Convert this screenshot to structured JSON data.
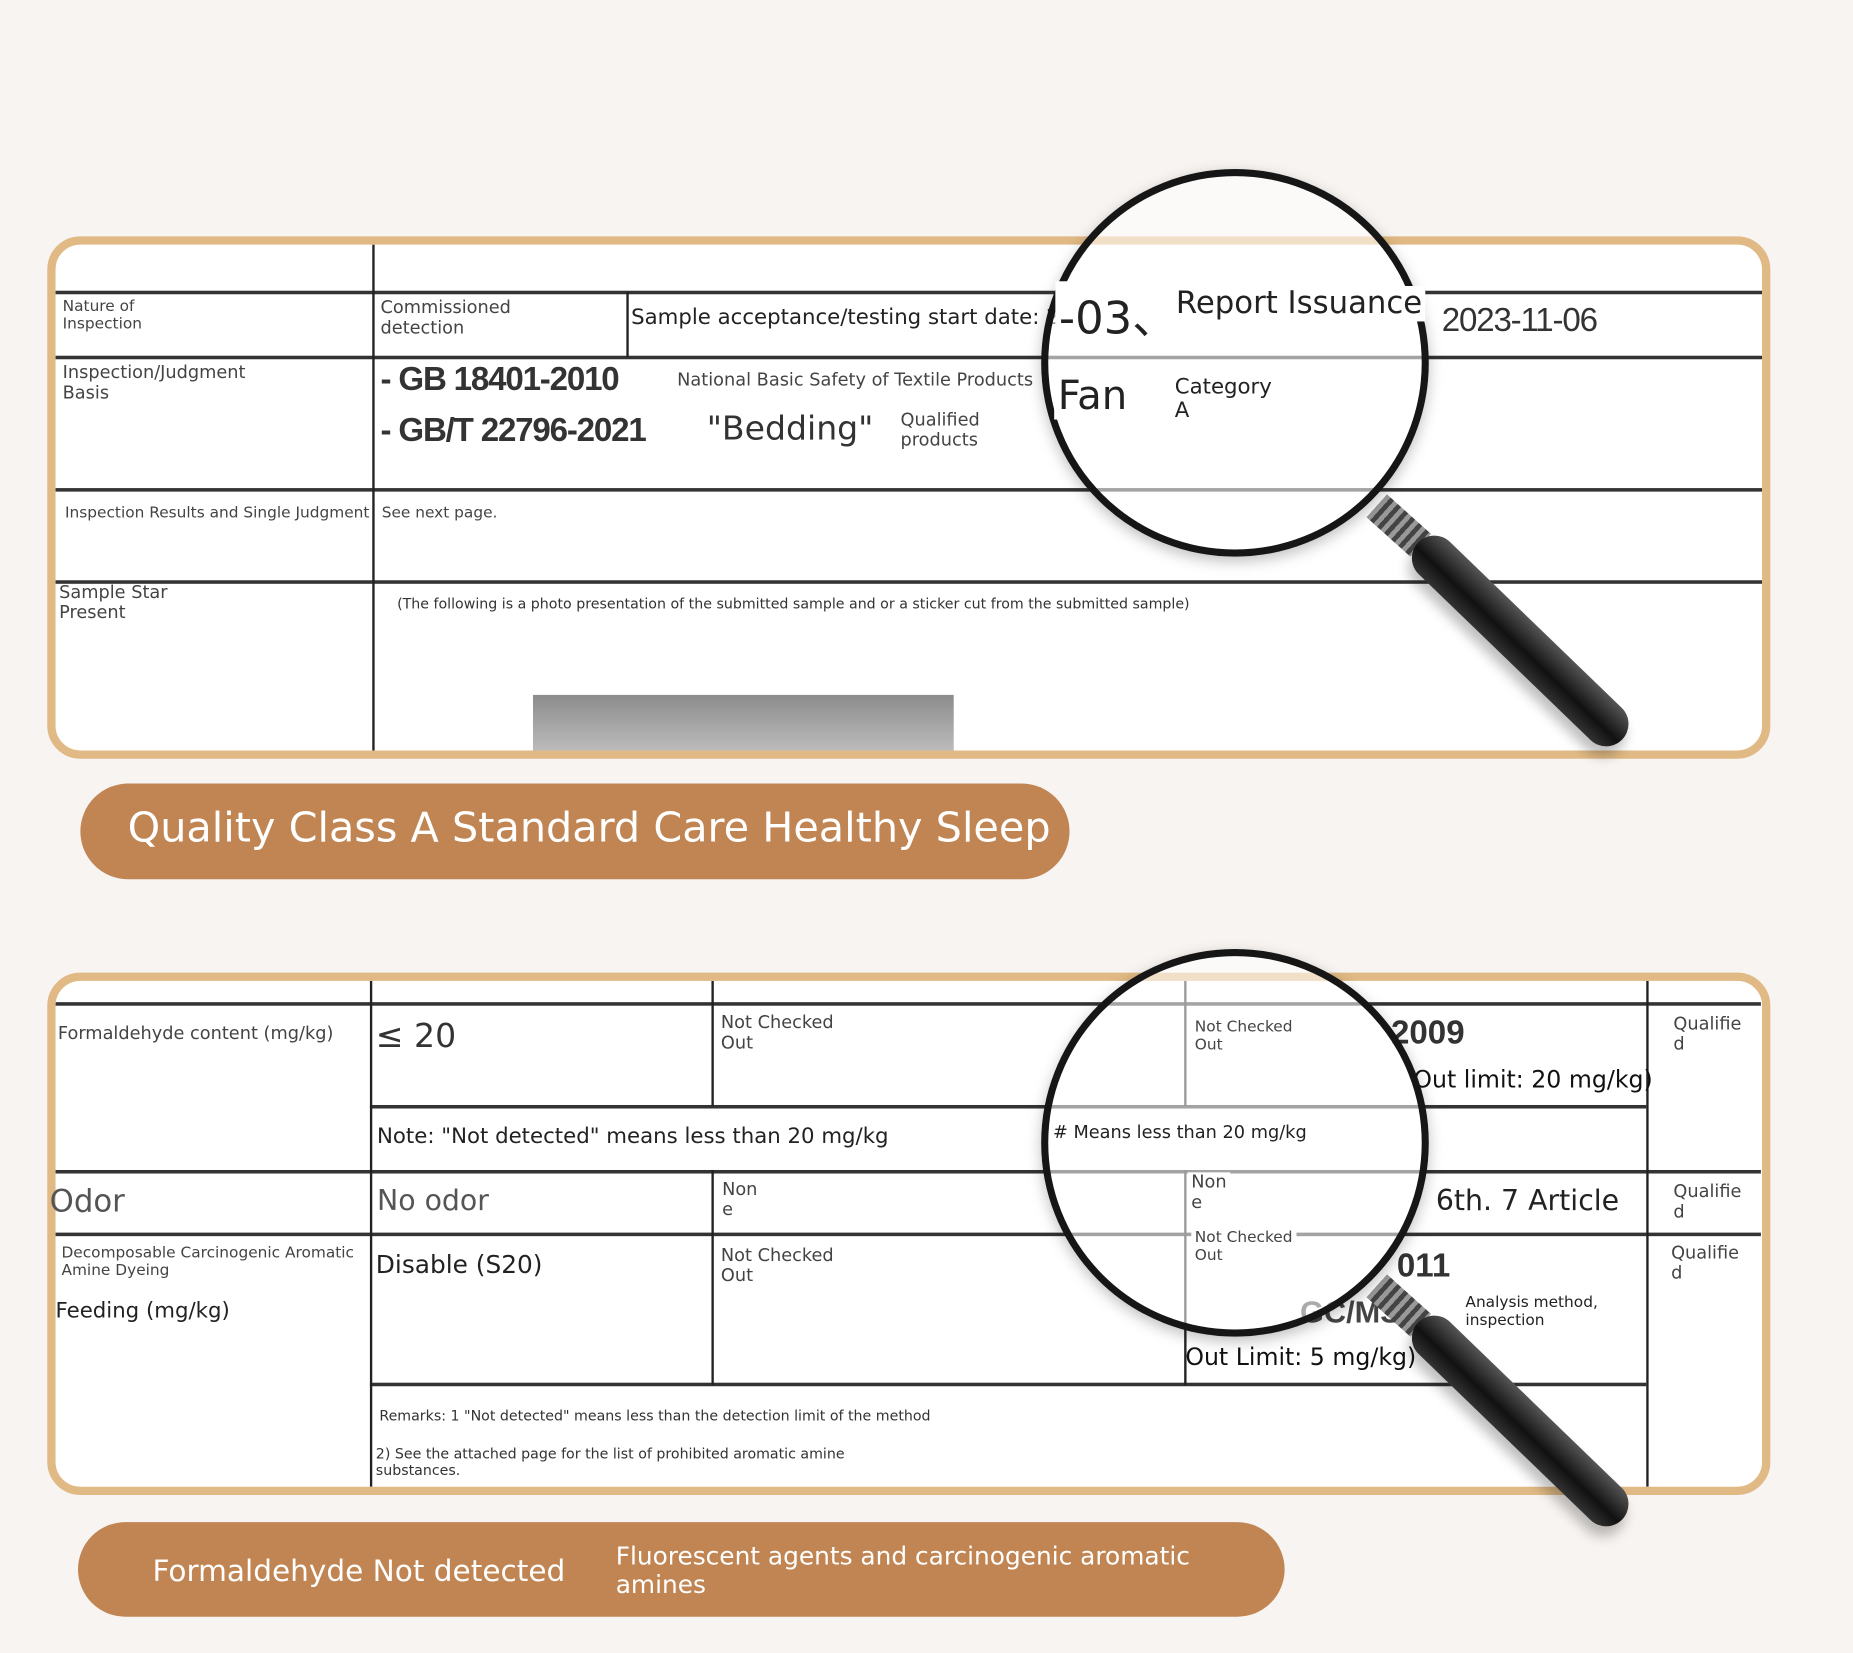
{
  "report_card": {
    "rows": {
      "nature_label": "Nature of\nInspection",
      "nature_value": "Commissioned\ndetection",
      "start_date": "Sample acceptance/testing start date: 20",
      "date_fragment": "-03、",
      "report_issuance": "Report Issuance",
      "issue_date": "2023-11-06",
      "basis_label": "Inspection/Judgment\nBasis",
      "standard_1": "GB 18401-2010",
      "standard_1_desc": "National Basic Safety of Textile Products",
      "standard_2": "GB/T 22796-2021",
      "standard_2_desc": "\"Bedding\"",
      "qualified_products": "Qualified\nproducts",
      "fan": "Fan",
      "category": "Category\nA",
      "results_label": "Inspection Results and Single Judgment",
      "results_value": "See next page.",
      "sample_label": "Sample Star\nPresent",
      "sample_note": "(The following is a photo presentation of the submitted sample and or a sticker cut from the submitted sample)"
    }
  },
  "banner_1": "Quality Class A Standard Care Healthy Sleep",
  "results_card": {
    "formaldehyde_label": "Formaldehyde content (mg/kg)",
    "formaldehyde_limit": "≤ 20",
    "not_checked_out": "Not Checked\nOut",
    "std_2009": "2009",
    "out_limit_20": "Out limit: 20 mg/kg)",
    "qualified": "Qualifie\nd",
    "note": "Note: \"Not detected\" means less than 20 mg/kg",
    "means_less": "# Means less than 20 mg/kg",
    "odor_label": "Odor",
    "odor_value": "No odor",
    "none": "Non\ne",
    "article": "6th. 7 Article",
    "amine_label": "Decomposable Carcinogenic Aromatic\nAmine Dyeing",
    "feeding": "Feeding (mg/kg)",
    "disable": "Disable (S20)",
    "std_2011": "011",
    "gcms": "GC/MS",
    "analysis": "Analysis method,\ninspection",
    "out_limit_5": "Out Limit: 5 mg/kg)",
    "remark_1": "Remarks: 1 \"Not detected\" means less than the detection limit of the method",
    "remark_2": "2) See the attached page for the list of prohibited aromatic amine\nsubstances."
  },
  "banner_2": {
    "left": "Formaldehyde Not detected",
    "right": "Fluorescent agents and carcinogenic aromatic\namines"
  },
  "colors": {
    "accent": "#c08552",
    "card_border": "#e0b984"
  },
  "icons": [
    "magnifying-glass-icon",
    "magnifying-glass-icon"
  ]
}
